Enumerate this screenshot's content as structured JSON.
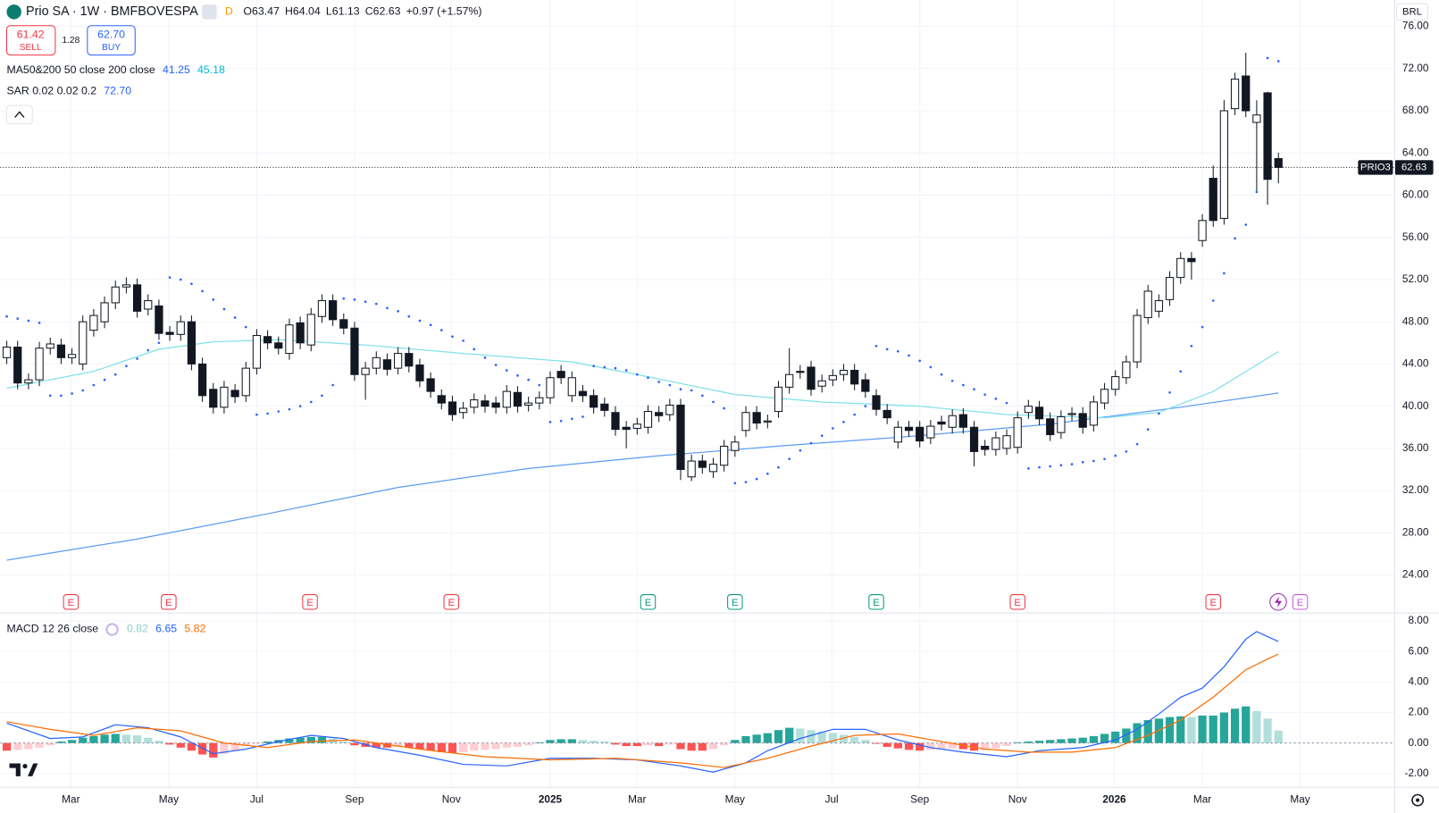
{
  "header": {
    "symbol": "Prio SA · 1W · BMFBOVESPA",
    "badge": "D",
    "ohlc": [
      {
        "label": "O",
        "value": "63.47"
      },
      {
        "label": "H",
        "value": "64.04"
      },
      {
        "label": "L",
        "value": "61.13"
      },
      {
        "label": "C",
        "value": "62.63"
      }
    ],
    "change": "+0.97 (+1.57%)",
    "sell": {
      "price": "61.42",
      "label": "SELL"
    },
    "spread": "1.28",
    "buy": {
      "price": "62.70",
      "label": "BUY"
    },
    "currency": "BRL",
    "legends": [
      {
        "label": "MA50&200 50 close 200 close",
        "values": [
          "41.25",
          "45.18"
        ]
      },
      {
        "label": "SAR 0.02 0.02 0.2",
        "values": [
          "72.70"
        ]
      }
    ],
    "price_tag": {
      "ticker": "PRIO3",
      "value": "62.63"
    }
  },
  "chart_data": {
    "type": "candlestick",
    "xlim": [
      -0.6,
      127.7
    ],
    "xticks": [
      {
        "value": 5.9,
        "label": "Mar"
      },
      {
        "value": 14.9,
        "label": "May"
      },
      {
        "value": 23.0,
        "label": "Jul"
      },
      {
        "value": 32.0,
        "label": "Sep"
      },
      {
        "value": 40.9,
        "label": "Nov"
      },
      {
        "value": 50.0,
        "label": "2025"
      },
      {
        "value": 58.0,
        "label": "Mar"
      },
      {
        "value": 67.0,
        "label": "May"
      },
      {
        "value": 75.9,
        "label": "Jul"
      },
      {
        "value": 84.0,
        "label": "Sep"
      },
      {
        "value": 93.0,
        "label": "Nov"
      },
      {
        "value": 101.9,
        "label": "2026"
      },
      {
        "value": 110.0,
        "label": "Mar"
      },
      {
        "value": 119.0,
        "label": "May"
      }
    ],
    "ylim": [
      20.4,
      78.5
    ],
    "yticks": [
      {
        "value": 24,
        "label": "24.00"
      },
      {
        "value": 28,
        "label": "28.00"
      },
      {
        "value": 32,
        "label": "32.00"
      },
      {
        "value": 36,
        "label": "36.00"
      },
      {
        "value": 40,
        "label": "40.00"
      },
      {
        "value": 44,
        "label": "44.00"
      },
      {
        "value": 48,
        "label": "48.00"
      },
      {
        "value": 52,
        "label": "52.00"
      },
      {
        "value": 56,
        "label": "56.00"
      },
      {
        "value": 60,
        "label": "60.00"
      },
      {
        "value": 64,
        "label": "64.00"
      },
      {
        "value": 68,
        "label": "68.00"
      },
      {
        "value": 72,
        "label": "72.00"
      },
      {
        "value": 76,
        "label": "76.00"
      }
    ],
    "grid": true,
    "candles": {
      "up_color": "#ffffff",
      "down_color": "#131722",
      "open": [
        44.6,
        45.6,
        42.2,
        42.5,
        45.5,
        45.8,
        44.6,
        44.0,
        47.2,
        48.0,
        49.8,
        51.3,
        51.5,
        49.2,
        49.5,
        47.0,
        46.8,
        48.0,
        44.0,
        41.6,
        39.9,
        41.5,
        41.0,
        43.6,
        46.6,
        46.0,
        45.0,
        47.9,
        45.8,
        48.5,
        50.0,
        48.2,
        47.4,
        43.0,
        43.6,
        44.4,
        43.6,
        45.0,
        43.9,
        42.6,
        41.0,
        40.4,
        39.4,
        39.9,
        40.5,
        40.3,
        39.9,
        41.3,
        40.1,
        40.3,
        40.8,
        43.3,
        41.0,
        41.4,
        41.0,
        40.2,
        39.4,
        38.0,
        37.9,
        38.0,
        39.4,
        39.2,
        40.1,
        33.3,
        34.8,
        33.8,
        34.4,
        35.8,
        37.7,
        39.4,
        38.5,
        39.5,
        41.8,
        43.3,
        43.7,
        41.9,
        42.5,
        43.0,
        43.4,
        42.5,
        41.0,
        39.6,
        36.6,
        38.0,
        38.0,
        37.0,
        38.5,
        38.0,
        39.2,
        38.0,
        36.2,
        35.9,
        36.0,
        36.1,
        39.4,
        39.9,
        38.8,
        37.5,
        39.2,
        39.3,
        38.2,
        40.3,
        41.6,
        42.7,
        44.2,
        48.4,
        49.0,
        50.1,
        52.2,
        54.0,
        55.7,
        61.6,
        57.8,
        68.2,
        71.3,
        66.9,
        69.7,
        63.47
      ],
      "high": [
        46.2,
        46.2,
        43.1,
        46.1,
        46.5,
        46.4,
        45.5,
        48.6,
        49.2,
        50.4,
        51.9,
        52.2,
        52.1,
        50.6,
        50.1,
        47.6,
        48.6,
        48.6,
        44.6,
        42.2,
        42.4,
        42.1,
        44.2,
        47.3,
        47.2,
        46.6,
        48.3,
        48.5,
        49.3,
        50.6,
        50.6,
        48.8,
        48.0,
        44.2,
        45.2,
        45.0,
        45.6,
        45.6,
        44.5,
        43.2,
        41.6,
        41.0,
        40.4,
        41.2,
        41.1,
        40.9,
        42.0,
        41.9,
        40.9,
        41.4,
        43.3,
        43.9,
        43.3,
        42.0,
        41.6,
        40.8,
        40.0,
        38.6,
        38.9,
        40.1,
        40.0,
        40.7,
        40.7,
        35.4,
        35.4,
        35.1,
        36.8,
        37.2,
        40.0,
        40.0,
        39.2,
        42.4,
        45.5,
        43.9,
        44.3,
        43.0,
        43.5,
        44.0,
        44.0,
        43.1,
        41.6,
        40.2,
        38.6,
        38.6,
        38.6,
        38.7,
        39.1,
        39.7,
        39.8,
        38.6,
        36.8,
        37.6,
        37.8,
        39.5,
        40.6,
        40.5,
        39.4,
        39.6,
        39.9,
        39.9,
        41.0,
        42.2,
        43.4,
        44.8,
        49.2,
        51.5,
        50.6,
        52.8,
        54.6,
        54.6,
        58.2,
        62.8,
        69.0,
        71.6,
        73.5,
        69.0,
        69.8,
        64.04
      ],
      "low": [
        44.0,
        41.6,
        41.6,
        41.9,
        44.9,
        44.0,
        44.0,
        43.4,
        46.6,
        47.4,
        49.2,
        50.7,
        48.4,
        48.6,
        46.3,
        46.2,
        46.2,
        43.4,
        40.4,
        39.3,
        39.3,
        40.3,
        40.4,
        43.0,
        45.4,
        44.9,
        44.4,
        45.4,
        45.2,
        47.9,
        47.6,
        46.8,
        42.4,
        40.6,
        43.0,
        42.9,
        43.0,
        43.2,
        41.8,
        40.8,
        39.7,
        38.6,
        38.8,
        39.3,
        39.4,
        39.3,
        39.3,
        39.4,
        39.5,
        39.7,
        40.2,
        42.1,
        40.4,
        40.4,
        39.3,
        39.0,
        37.2,
        36.0,
        37.3,
        37.4,
        38.5,
        38.6,
        33.0,
        32.9,
        33.6,
        33.2,
        33.8,
        35.2,
        37.1,
        37.8,
        37.9,
        38.9,
        41.2,
        42.6,
        41.0,
        41.3,
        41.9,
        42.4,
        41.5,
        40.8,
        39.1,
        38.3,
        36.0,
        37.1,
        36.1,
        36.4,
        37.7,
        37.4,
        37.4,
        34.3,
        35.3,
        35.3,
        35.4,
        35.5,
        38.8,
        38.2,
        36.7,
        36.9,
        38.6,
        37.4,
        37.6,
        39.7,
        41.0,
        42.1,
        43.6,
        47.8,
        48.4,
        49.5,
        51.6,
        52.0,
        55.1,
        57.0,
        57.2,
        67.6,
        67.4,
        60.4,
        59.1,
        61.13
      ],
      "close": [
        45.6,
        42.2,
        42.5,
        45.5,
        45.9,
        44.6,
        44.9,
        48.0,
        48.6,
        49.8,
        51.3,
        51.5,
        49.0,
        50.0,
        46.9,
        46.8,
        48.0,
        44.0,
        41.0,
        39.9,
        41.8,
        40.9,
        43.6,
        46.7,
        46.0,
        45.5,
        47.7,
        46.0,
        48.7,
        50.0,
        48.2,
        47.4,
        43.0,
        43.6,
        44.6,
        43.5,
        45.0,
        43.8,
        42.4,
        41.4,
        40.3,
        39.2,
        39.8,
        40.6,
        40.0,
        39.9,
        41.4,
        40.0,
        40.3,
        40.8,
        42.7,
        42.7,
        42.7,
        41.0,
        39.9,
        39.6,
        37.8,
        37.8,
        38.3,
        39.5,
        39.1,
        40.1,
        34.0,
        34.8,
        34.2,
        34.5,
        36.2,
        36.6,
        39.4,
        38.4,
        38.6,
        41.8,
        43.0,
        43.2,
        41.6,
        42.4,
        42.9,
        43.4,
        42.1,
        41.4,
        39.7,
        38.9,
        38.0,
        37.7,
        36.7,
        38.1,
        38.3,
        39.1,
        38.0,
        35.7,
        35.9,
        37.0,
        37.2,
        38.9,
        40.0,
        38.8,
        37.3,
        39.0,
        39.3,
        38.0,
        40.4,
        41.6,
        42.8,
        44.2,
        48.6,
        50.9,
        50.0,
        52.2,
        54.0,
        53.7,
        57.6,
        57.6,
        68.0,
        71.0,
        68.0,
        67.6,
        61.5,
        62.63
      ]
    },
    "series": [
      {
        "name": "MA200",
        "color": "#5b9cf6",
        "x": [
          0,
          12,
          24,
          36,
          48,
          60,
          72,
          84,
          96,
          108,
          117
        ],
        "values": [
          25.4,
          27.4,
          29.8,
          32.3,
          34.1,
          35.3,
          36.3,
          37.2,
          38.3,
          39.9,
          41.25
        ]
      },
      {
        "name": "MA50",
        "color": "#7fe0e8",
        "x": [
          0,
          8,
          14,
          19,
          25,
          33,
          42,
          52,
          58,
          67,
          75,
          84,
          92,
          101,
          106,
          111,
          117
        ],
        "values": [
          41.7,
          43.3,
          45.4,
          46.1,
          46.3,
          45.8,
          45.0,
          44.2,
          43.0,
          41.1,
          40.4,
          40.0,
          39.2,
          38.9,
          39.4,
          41.4,
          45.18
        ]
      }
    ],
    "sar": {
      "color": "#2962ff",
      "values": [
        48.5,
        48.3,
        48.1,
        47.9,
        41.0,
        41.0,
        41.2,
        41.5,
        42.0,
        42.5,
        43.0,
        43.8,
        44.5,
        45.3,
        46.0,
        52.2,
        52.0,
        51.6,
        50.9,
        50.1,
        49.2,
        48.4,
        47.5,
        39.2,
        39.3,
        39.5,
        39.7,
        40.0,
        40.4,
        41.0,
        42.0,
        50.2,
        50.1,
        49.9,
        49.7,
        49.3,
        49.0,
        48.5,
        48.1,
        47.7,
        47.2,
        46.6,
        46.2,
        45.4,
        44.6,
        43.9,
        43.4,
        42.9,
        42.5,
        42.0,
        38.5,
        38.6,
        38.8,
        39.0,
        43.8,
        43.7,
        43.6,
        43.4,
        43.0,
        42.7,
        42.3,
        42.0,
        41.6,
        41.5,
        41.0,
        40.4,
        39.8,
        32.7,
        32.8,
        33.1,
        33.6,
        34.2,
        35.0,
        35.8,
        36.5,
        37.2,
        37.9,
        38.5,
        39.2,
        40.0,
        45.7,
        45.4,
        45.2,
        44.8,
        44.3,
        43.7,
        43.0,
        42.4,
        42.0,
        41.6,
        41.1,
        40.7,
        40.3,
        null,
        34.1,
        34.2,
        34.3,
        34.4,
        34.5,
        34.7,
        34.8,
        35.0,
        35.3,
        35.7,
        36.4,
        37.8,
        39.3,
        41.3,
        43.3,
        45.7,
        47.5,
        50.0,
        52.6,
        55.9,
        57.2,
        60.3,
        73.0,
        72.7
      ]
    },
    "events": [
      {
        "index": 5.9,
        "label": "E",
        "color": "#f23645"
      },
      {
        "index": 14.9,
        "label": "E",
        "color": "#f23645"
      },
      {
        "index": 27.9,
        "label": "E",
        "color": "#f23645"
      },
      {
        "index": 40.9,
        "label": "E",
        "color": "#f23645"
      },
      {
        "index": 59.0,
        "label": "E",
        "color": "#089981"
      },
      {
        "index": 67.0,
        "label": "E",
        "color": "#089981"
      },
      {
        "index": 80.0,
        "label": "E",
        "color": "#089981"
      },
      {
        "index": 93.0,
        "label": "E",
        "color": "#f23645"
      },
      {
        "index": 111.0,
        "label": "E",
        "color": "#f23645"
      },
      {
        "index": 119.0,
        "label": "E",
        "color": "#c05ee0"
      }
    ],
    "macd": {
      "legend": {
        "label": "MACD 12 26 close",
        "values": [
          "0.82",
          "6.65",
          "5.82"
        ],
        "colors": [
          "#8fcfc8",
          "#2962ff",
          "#ff6d00"
        ]
      },
      "ylim": [
        -2.9,
        8.4
      ],
      "yticks": [
        {
          "value": -2,
          "label": "-2.00"
        },
        {
          "value": 0,
          "label": "0.00"
        },
        {
          "value": 2,
          "label": "2.00"
        },
        {
          "value": 4,
          "label": "4.00"
        },
        {
          "value": 6,
          "label": "6.00"
        },
        {
          "value": 8,
          "label": "8.00"
        }
      ],
      "histogram": {
        "colors": {
          "pos_up": "#26a69a",
          "pos_down": "#b2dfdb",
          "neg_down": "#ff5252",
          "neg_up": "#ffcdd2"
        },
        "values": [
          -0.5,
          -0.45,
          -0.4,
          -0.3,
          -0.15,
          0.1,
          0.2,
          0.35,
          0.45,
          0.55,
          0.6,
          0.55,
          0.5,
          0.35,
          0.15,
          -0.1,
          -0.3,
          -0.5,
          -0.75,
          -0.95,
          -0.7,
          -0.5,
          -0.2,
          -0.05,
          0.1,
          0.2,
          0.3,
          0.35,
          0.4,
          0.4,
          0.3,
          0.1,
          -0.15,
          -0.25,
          -0.3,
          -0.3,
          -0.25,
          -0.3,
          -0.4,
          -0.5,
          -0.6,
          -0.65,
          -0.6,
          -0.5,
          -0.45,
          -0.4,
          -0.3,
          -0.25,
          -0.15,
          0.05,
          0.2,
          0.25,
          0.25,
          0.2,
          0.15,
          0.1,
          -0.1,
          -0.2,
          -0.2,
          -0.15,
          -0.2,
          -0.1,
          -0.4,
          -0.5,
          -0.5,
          -0.4,
          -0.15,
          0.2,
          0.45,
          0.55,
          0.65,
          0.85,
          1.0,
          0.95,
          0.85,
          0.75,
          0.65,
          0.55,
          0.4,
          0.2,
          -0.05,
          -0.25,
          -0.35,
          -0.45,
          -0.5,
          -0.45,
          -0.4,
          -0.35,
          -0.4,
          -0.5,
          -0.45,
          -0.35,
          -0.2,
          0.05,
          0.1,
          0.15,
          0.2,
          0.25,
          0.3,
          0.35,
          0.45,
          0.6,
          0.75,
          0.95,
          1.3,
          1.5,
          1.6,
          1.7,
          1.75,
          1.7,
          1.8,
          1.8,
          2.0,
          2.25,
          2.4,
          2.1,
          1.6,
          0.82
        ]
      },
      "series": [
        {
          "name": "MACD",
          "color": "#2962ff",
          "x": [
            0,
            4,
            7,
            10,
            13,
            16,
            19,
            22,
            25,
            28,
            31,
            34,
            38,
            42,
            46,
            50,
            54,
            58,
            62,
            65,
            68,
            70,
            73,
            76,
            79,
            82,
            85,
            88,
            92,
            95,
            99,
            102,
            104,
            106,
            108,
            110,
            112,
            114,
            115,
            117
          ],
          "values": [
            1.3,
            0.3,
            0.4,
            1.2,
            1.0,
            0.4,
            -0.7,
            -0.4,
            0.1,
            0.5,
            0.3,
            -0.3,
            -0.8,
            -1.4,
            -1.5,
            -1.0,
            -1.0,
            -1.1,
            -1.5,
            -1.9,
            -1.3,
            -0.5,
            0.3,
            0.9,
            0.9,
            0.2,
            -0.3,
            -0.6,
            -0.9,
            -0.5,
            -0.3,
            0.2,
            0.9,
            1.9,
            3.0,
            3.6,
            5.0,
            6.8,
            7.3,
            6.65
          ]
        },
        {
          "name": "Signal",
          "color": "#ff6d00",
          "x": [
            0,
            4,
            8,
            12,
            16,
            20,
            24,
            28,
            32,
            38,
            44,
            50,
            56,
            62,
            66,
            70,
            74,
            78,
            82,
            86,
            90,
            94,
            98,
            102,
            105,
            108,
            111,
            114,
            116,
            117
          ],
          "values": [
            1.4,
            0.9,
            0.5,
            1.0,
            0.8,
            0.0,
            -0.3,
            0.1,
            0.2,
            -0.4,
            -0.9,
            -1.1,
            -1.0,
            -1.3,
            -1.6,
            -1.0,
            -0.2,
            0.5,
            0.6,
            0.1,
            -0.4,
            -0.6,
            -0.6,
            -0.3,
            0.5,
            1.5,
            3.0,
            4.8,
            5.5,
            5.82
          ]
        }
      ]
    }
  }
}
